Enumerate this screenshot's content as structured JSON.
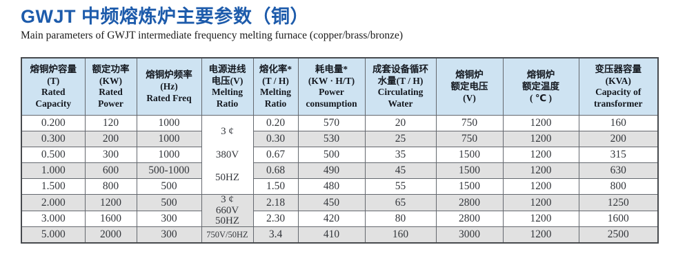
{
  "page": {
    "title": "GWJT 中频熔炼炉主要参数（铜）",
    "subtitle": "Main parameters of GWJT intermediate frequency melting furnace (copper/brass/bronze)"
  },
  "colors": {
    "title_blue": "#1d5bab",
    "header_bg": "#cee3f2",
    "stripe_bg": "#e1e1e1",
    "border": "#63676d"
  },
  "table": {
    "headers": [
      {
        "key": "capacity",
        "lines": [
          "熔铜炉容量",
          "(T)",
          "Rated",
          "Capacity"
        ]
      },
      {
        "key": "power",
        "lines": [
          "额定功率",
          "(KW)",
          "Rated",
          "Power"
        ]
      },
      {
        "key": "freq",
        "lines": [
          "熔铜炉频率",
          "(Hz)",
          "Rated Freq"
        ]
      },
      {
        "key": "voltage",
        "lines": [
          "电源进线",
          "电压(V)",
          "Melting",
          "Ratio"
        ]
      },
      {
        "key": "melt-rate",
        "lines": [
          "熔化率*",
          "(T / H)",
          "Melting",
          "Ratio"
        ]
      },
      {
        "key": "consumption",
        "lines": [
          "耗电量*",
          "(KW · H/T)",
          "Power",
          "consumption"
        ]
      },
      {
        "key": "water",
        "lines": [
          "成套设备循环",
          "水量(T / H)",
          "Circulating",
          "Water"
        ]
      },
      {
        "key": "furnace-voltage",
        "lines": [
          "熔铜炉",
          "额定电压",
          "(V)"
        ]
      },
      {
        "key": "temp",
        "lines": [
          "熔铜炉",
          "额定温度",
          "( ℃ )"
        ]
      },
      {
        "key": "transformer",
        "lines": [
          "变压器容量",
          "(KVA)",
          "Capacity of",
          "transformer"
        ]
      }
    ],
    "voltage_groups": [
      {
        "lines": [
          "3 ¢",
          "380V",
          "50HZ"
        ],
        "span": 5,
        "style": "vg-spread"
      },
      {
        "lines": [
          "3 ¢",
          "660V",
          "50HZ"
        ],
        "span": 2,
        "style": "vg-stack"
      },
      {
        "lines": [
          "750V/50HZ"
        ],
        "span": 1,
        "style": "vg-small"
      }
    ],
    "rows": [
      [
        "0.200",
        "120",
        "1000",
        "0.20",
        "570",
        "20",
        "750",
        "1200",
        "160"
      ],
      [
        "0.300",
        "200",
        "1000",
        "0.30",
        "530",
        "25",
        "750",
        "1200",
        "200"
      ],
      [
        "0.500",
        "300",
        "1000",
        "0.67",
        "500",
        "35",
        "1500",
        "1200",
        "315"
      ],
      [
        "1.000",
        "600",
        "500-1000",
        "0.68",
        "490",
        "45",
        "1500",
        "1200",
        "630"
      ],
      [
        "1.500",
        "800",
        "500",
        "1.50",
        "480",
        "55",
        "1500",
        "1200",
        "800"
      ],
      [
        "2.000",
        "1200",
        "500",
        "2.18",
        "450",
        "65",
        "2800",
        "1200",
        "1250"
      ],
      [
        "3.000",
        "1600",
        "300",
        "2.30",
        "420",
        "80",
        "2800",
        "1200",
        "1600"
      ],
      [
        "5.000",
        "2000",
        "300",
        "3.4",
        "410",
        "160",
        "3000",
        "1200",
        "2500"
      ]
    ]
  }
}
